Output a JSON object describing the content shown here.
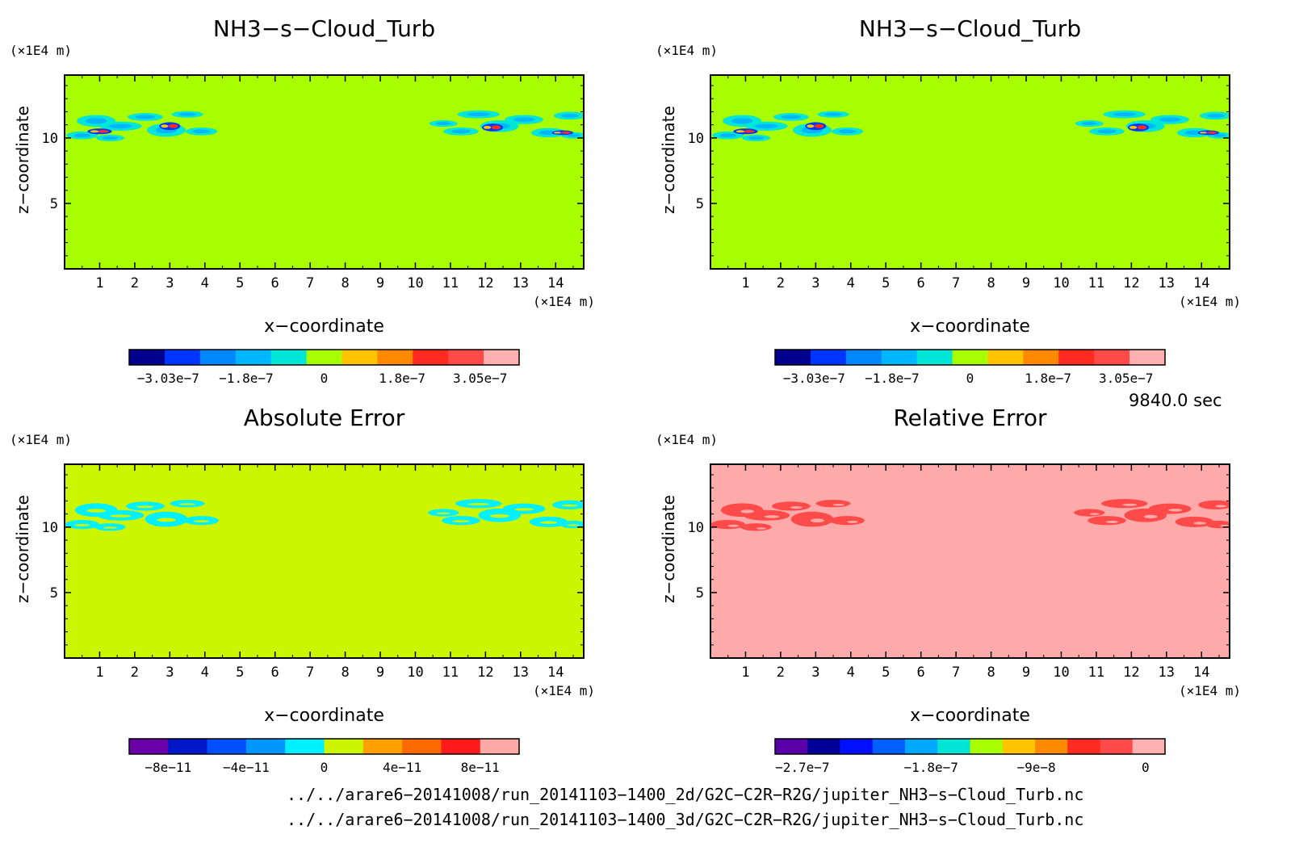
{
  "panels": [
    {
      "title": "NH3−s−Cloud_Turb",
      "y_unit": "(×1E4 m)",
      "x_unit": "(×1E4 m)",
      "xlabel": "x−coordinate",
      "ylabel": "z−coordinate",
      "background": "#a8fe00",
      "colorbar": {
        "colors": [
          "#00008c",
          "#0034ff",
          "#0086ff",
          "#00b6ff",
          "#00e6d6",
          "#a8fe00",
          "#ffc400",
          "#ff8a00",
          "#ff2a20",
          "#ff4a4a",
          "#ffb0b0"
        ],
        "tick_labels": [
          "−3.03e−7",
          "−1.8e−7",
          "0",
          "1.8e−7",
          "3.05e−7"
        ]
      },
      "field": "signal"
    },
    {
      "title": "NH3−s−Cloud_Turb",
      "y_unit": "(×1E4 m)",
      "x_unit": "(×1E4 m)",
      "xlabel": "x−coordinate",
      "ylabel": "z−coordinate",
      "background": "#a8fe00",
      "colorbar": {
        "colors": [
          "#00008c",
          "#0034ff",
          "#0086ff",
          "#00b6ff",
          "#00e6d6",
          "#a8fe00",
          "#ffc400",
          "#ff8a00",
          "#ff2a20",
          "#ff4a4a",
          "#ffb0b0"
        ],
        "tick_labels": [
          "−3.03e−7",
          "−1.8e−7",
          "0",
          "1.8e−7",
          "3.05e−7"
        ]
      },
      "field": "signal"
    },
    {
      "title": "Absolute Error",
      "y_unit": "(×1E4 m)",
      "x_unit": "(×1E4 m)",
      "xlabel": "x−coordinate",
      "ylabel": "z−coordinate",
      "background": "#ccf500",
      "colorbar": {
        "colors": [
          "#6a00a8",
          "#0018c8",
          "#0050ff",
          "#0096ff",
          "#00f0ff",
          "#ccf500",
          "#ffa000",
          "#ff6a00",
          "#ff1a1a",
          "#ffa8a8"
        ],
        "tick_labels": [
          "−8e−11",
          "−4e−11",
          "0",
          "4e−11",
          "8e−11"
        ]
      },
      "field": "abs"
    },
    {
      "title": "Relative Error",
      "y_unit": "(×1E4 m)",
      "x_unit": "(×1E4 m)",
      "xlabel": "x−coordinate",
      "ylabel": "z−coordinate",
      "background": "#ffaaaa",
      "colorbar": {
        "colors": [
          "#5a00a8",
          "#000096",
          "#0010ff",
          "#0060ff",
          "#00a8ff",
          "#00e6d6",
          "#a8fe00",
          "#ffc400",
          "#ff8a00",
          "#ff2a20",
          "#ff4a4a",
          "#ffb0b0"
        ],
        "tick_labels": [
          "−2.7e−7",
          "−1.8e−7",
          "−9e−8",
          "0"
        ]
      },
      "field": "rel"
    }
  ],
  "chart_data": [
    {
      "type": "heatmap",
      "title": "NH3−s−Cloud_Turb",
      "xlabel": "x−coordinate",
      "ylabel": "z−coordinate",
      "xlim": [
        0,
        14.8
      ],
      "ylim": [
        0,
        14.8
      ],
      "xticks": [
        1,
        2,
        3,
        4,
        5,
        6,
        7,
        8,
        9,
        10,
        11,
        12,
        13,
        14
      ],
      "yticks": [
        5,
        10
      ],
      "colorbar_range": [
        -3.03e-07,
        3.05e-07
      ],
      "colorbar_ticks": [
        -3.03e-07,
        -1.8e-07,
        0,
        1.8e-07,
        3.05e-07
      ],
      "feature_band_z": [
        9.5,
        12.3
      ]
    },
    {
      "type": "heatmap",
      "title": "NH3−s−Cloud_Turb",
      "xlabel": "x−coordinate",
      "ylabel": "z−coordinate",
      "xlim": [
        0,
        14.8
      ],
      "ylim": [
        0,
        14.8
      ],
      "xticks": [
        1,
        2,
        3,
        4,
        5,
        6,
        7,
        8,
        9,
        10,
        11,
        12,
        13,
        14
      ],
      "yticks": [
        5,
        10
      ],
      "colorbar_range": [
        -3.03e-07,
        3.05e-07
      ],
      "colorbar_ticks": [
        -3.03e-07,
        -1.8e-07,
        0,
        1.8e-07,
        3.05e-07
      ],
      "feature_band_z": [
        9.5,
        12.3
      ]
    },
    {
      "type": "heatmap",
      "title": "Absolute Error",
      "xlabel": "x−coordinate",
      "ylabel": "z−coordinate",
      "xlim": [
        0,
        14.8
      ],
      "ylim": [
        0,
        14.8
      ],
      "xticks": [
        1,
        2,
        3,
        4,
        5,
        6,
        7,
        8,
        9,
        10,
        11,
        12,
        13,
        14
      ],
      "yticks": [
        5,
        10
      ],
      "colorbar_range": [
        -1e-10,
        1e-10
      ],
      "colorbar_ticks": [
        -8e-11,
        -4e-11,
        0,
        4e-11,
        8e-11
      ],
      "feature_band_z": [
        9.5,
        12.3
      ]
    },
    {
      "type": "heatmap",
      "title": "Relative Error",
      "xlabel": "x−coordinate",
      "ylabel": "z−coordinate",
      "xlim": [
        0,
        14.8
      ],
      "ylim": [
        0,
        14.8
      ],
      "xticks": [
        1,
        2,
        3,
        4,
        5,
        6,
        7,
        8,
        9,
        10,
        11,
        12,
        13,
        14
      ],
      "yticks": [
        5,
        10
      ],
      "colorbar_range": [
        -3.2e-07,
        1e-08
      ],
      "colorbar_ticks": [
        -2.7e-07,
        -1.8e-07,
        -9e-08,
        0
      ],
      "feature_band_z": [
        9.5,
        12.3
      ]
    }
  ],
  "time_label": "9840.0 sec",
  "file_paths": [
    "../../arare6−20141008/run_20141103−1400_2d/G2C−C2R−R2G/jupiter_NH3−s−Cloud_Turb.nc",
    "../../arare6−20141008/run_20141103−1400_3d/G2C−C2R−R2G/jupiter_NH3−s−Cloud_Turb.nc"
  ]
}
